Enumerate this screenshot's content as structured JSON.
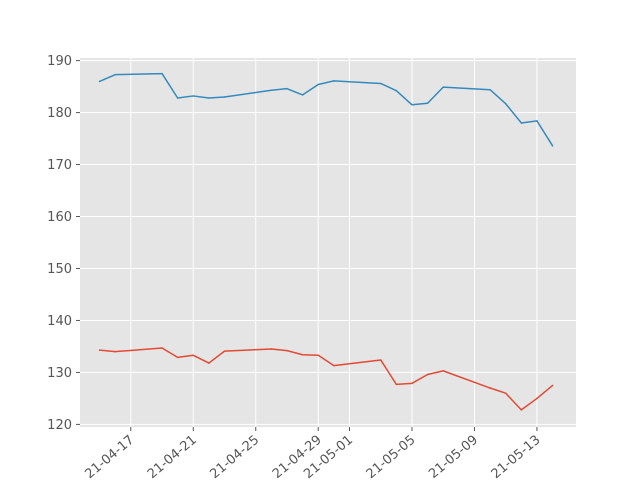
{
  "chart_data": {
    "type": "line",
    "title": "",
    "xlabel": "",
    "ylabel": "",
    "style": {
      "background": "#E5E5E5",
      "grid": true,
      "grid_color": "#ffffff"
    },
    "x_ticks": [
      "2021-04-17",
      "2021-04-21",
      "2021-04-25",
      "2021-04-29",
      "2021-05-01",
      "2021-05-05",
      "2021-05-09",
      "2021-05-13"
    ],
    "x_tick_labels": [
      "21-04-17",
      "21-04-21",
      "21-04-25",
      "21-04-29",
      "21-05-01",
      "21-05-05",
      "21-05-09",
      "21-05-13"
    ],
    "y_ticks": [
      120,
      130,
      140,
      150,
      160,
      170,
      180,
      190
    ],
    "xlim": [
      "2021-04-13T18:00",
      "2021-05-15T12:00"
    ],
    "ylim": [
      119.5,
      190.5
    ],
    "series": [
      {
        "color": "#348ABD",
        "points": [
          [
            "2021-04-15",
            186.0
          ],
          [
            "2021-04-16",
            187.3
          ],
          [
            "2021-04-19",
            187.5
          ],
          [
            "2021-04-20",
            182.8
          ],
          [
            "2021-04-21",
            183.2
          ],
          [
            "2021-04-22",
            182.8
          ],
          [
            "2021-04-23",
            183.0
          ],
          [
            "2021-04-26",
            184.3
          ],
          [
            "2021-04-27",
            184.6
          ],
          [
            "2021-04-28",
            183.4
          ],
          [
            "2021-04-29",
            185.4
          ],
          [
            "2021-04-30",
            186.1
          ],
          [
            "2021-05-03",
            185.6
          ],
          [
            "2021-05-04",
            184.2
          ],
          [
            "2021-05-05",
            181.5
          ],
          [
            "2021-05-06",
            181.8
          ],
          [
            "2021-05-07",
            184.9
          ],
          [
            "2021-05-10",
            184.4
          ],
          [
            "2021-05-11",
            181.7
          ],
          [
            "2021-05-12",
            178.0
          ],
          [
            "2021-05-13",
            178.4
          ],
          [
            "2021-05-14",
            173.6
          ]
        ]
      },
      {
        "color": "#E24A33",
        "points": [
          [
            "2021-04-15",
            134.3
          ],
          [
            "2021-04-16",
            134.0
          ],
          [
            "2021-04-19",
            134.7
          ],
          [
            "2021-04-20",
            132.9
          ],
          [
            "2021-04-21",
            133.3
          ],
          [
            "2021-04-22",
            131.8
          ],
          [
            "2021-04-23",
            134.1
          ],
          [
            "2021-04-26",
            134.5
          ],
          [
            "2021-04-27",
            134.2
          ],
          [
            "2021-04-28",
            133.4
          ],
          [
            "2021-04-29",
            133.3
          ],
          [
            "2021-04-30",
            131.3
          ],
          [
            "2021-05-03",
            132.4
          ],
          [
            "2021-05-04",
            127.7
          ],
          [
            "2021-05-05",
            127.9
          ],
          [
            "2021-05-06",
            129.6
          ],
          [
            "2021-05-07",
            130.3
          ],
          [
            "2021-05-10",
            127.0
          ],
          [
            "2021-05-11",
            126.0
          ],
          [
            "2021-05-12",
            122.8
          ],
          [
            "2021-05-13",
            125.0
          ],
          [
            "2021-05-14",
            127.5
          ]
        ]
      }
    ]
  }
}
